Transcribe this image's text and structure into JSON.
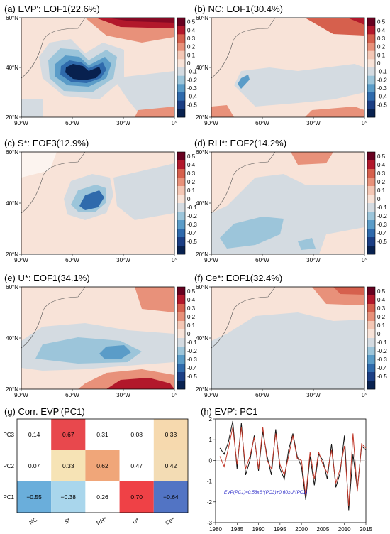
{
  "colorbar": {
    "levels": [
      "0.5",
      "0.4",
      "0.3",
      "0.2",
      "0.1",
      "0",
      "-0.1",
      "-0.2",
      "-0.3",
      "-0.4",
      "-0.5"
    ],
    "colors": [
      "#67001f",
      "#b2182b",
      "#d6604d",
      "#e8917a",
      "#f4c7b5",
      "#f8e3d8",
      "#d4dbe1",
      "#9cc5da",
      "#5a9cc8",
      "#2f6aac",
      "#1b3e84",
      "#08214f"
    ]
  },
  "maps": {
    "lon_ticks": [
      "90°W",
      "60°W",
      "30°W",
      "0°"
    ],
    "lat_ticks": [
      "60°N",
      "40°N",
      "20°N"
    ],
    "panels": [
      {
        "title": "(a) EVP': EOF1(22.6%)"
      },
      {
        "title": "(b) NC: EOF1(30.4%)"
      },
      {
        "title": "(c) S*: EOF3(12.9%)"
      },
      {
        "title": "(d) RH*: EOF2(14.2%)"
      },
      {
        "title": "(e) U*: EOF1(34.1%)"
      },
      {
        "title": "(f) Ce*: EOF1(32.4%)"
      }
    ]
  },
  "chart_data": [
    {
      "type": "heatmap",
      "title": "(g) Corr. EVP'(PC1)",
      "rows": [
        "PC3",
        "PC2",
        "PC1"
      ],
      "cols": [
        "NC",
        "S*",
        "RH*",
        "U*",
        "Ce*"
      ],
      "values": [
        [
          0.14,
          0.67,
          0.31,
          0.08,
          0.33
        ],
        [
          0.07,
          0.33,
          0.62,
          0.47,
          0.42
        ],
        [
          -0.55,
          -0.38,
          0.26,
          0.7,
          -0.64
        ]
      ],
      "labels": [
        [
          "0.14",
          "0.67",
          "0.31",
          "0.08",
          "0.33"
        ],
        [
          "0.07",
          "0.33",
          "0.62",
          "0.47",
          "0.42"
        ],
        [
          "−0.55",
          "−0.38",
          "0.26",
          "0.70",
          "−0.64"
        ]
      ],
      "colors": [
        [
          "#ffffff",
          "#e8484d",
          "#ffffff",
          "#ffffff",
          "#f6d9ae"
        ],
        [
          "#ffffff",
          "#f6e3b5",
          "#f0a679",
          "#ffffff",
          "#f3dcb4"
        ],
        [
          "#6aaedb",
          "#a9d6ec",
          "#ffffff",
          "#ef4146",
          "#5274c4"
        ]
      ]
    },
    {
      "type": "line",
      "title": "(h) EVP': PC1",
      "xlim": [
        1980,
        2015
      ],
      "ylim": [
        -3,
        2
      ],
      "xticks": [
        "1980",
        "1985",
        "1990",
        "1995",
        "2000",
        "2005",
        "2010",
        "2015"
      ],
      "yticks": [
        "2",
        "1",
        "0",
        "-1",
        "-2",
        "-3"
      ],
      "x": [
        1981,
        1982,
        1983,
        1984,
        1985,
        1986,
        1987,
        1988,
        1989,
        1990,
        1991,
        1992,
        1993,
        1994,
        1995,
        1996,
        1997,
        1998,
        1999,
        2000,
        2001,
        2002,
        2003,
        2004,
        2005,
        2006,
        2007,
        2008,
        2009,
        2010,
        2011,
        2012,
        2013,
        2014,
        2015
      ],
      "series": [
        {
          "color": "#111111",
          "values": [
            0.6,
            0.3,
            0.9,
            1.9,
            -0.4,
            1.8,
            -0.7,
            0.0,
            1.2,
            -0.5,
            1.4,
            0.2,
            -0.7,
            1.5,
            -0.4,
            -0.9,
            0.5,
            1.3,
            0.2,
            -0.3,
            -1.9,
            0.2,
            -1.2,
            0.3,
            0.0,
            -0.9,
            0.8,
            -1.3,
            -0.6,
            1.2,
            -2.4,
            0.3,
            -1.4,
            0.7,
            0.5
          ]
        },
        {
          "color": "#c0392b",
          "values": [
            0.2,
            -0.3,
            0.6,
            1.6,
            -0.2,
            1.6,
            -0.4,
            0.2,
            1.1,
            -0.4,
            1.6,
            0.0,
            -0.4,
            1.3,
            -0.2,
            -0.7,
            0.2,
            1.2,
            0.1,
            0.0,
            -1.7,
            0.4,
            -0.9,
            0.4,
            -0.2,
            -0.6,
            0.5,
            -1.1,
            -0.4,
            0.7,
            -2.2,
            1.3,
            -1.5,
            0.8,
            0.6
          ]
        }
      ],
      "annotation": "EVP(PC1)=0.56xS*(PC3)+0.60xU*(PC1)"
    }
  ]
}
